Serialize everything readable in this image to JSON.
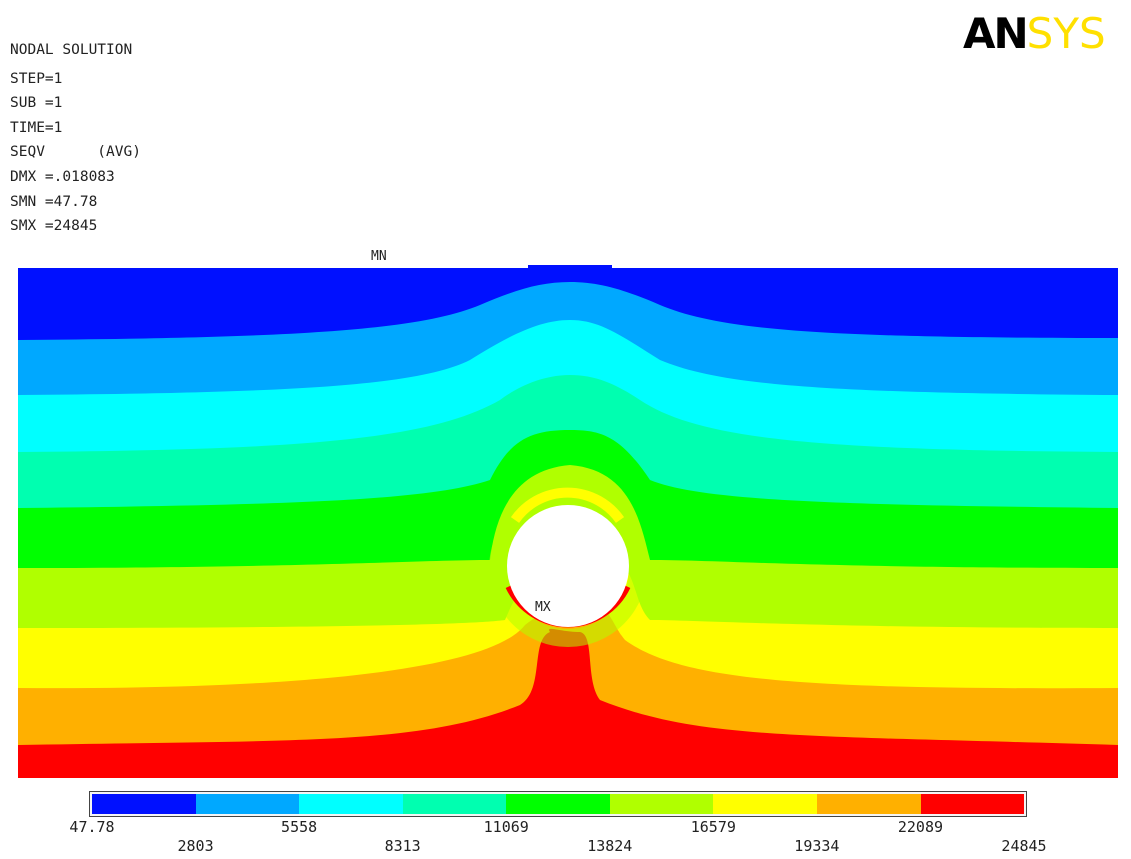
{
  "header": {
    "title": "NODAL SOLUTION",
    "step": "STEP=1",
    "sub": "SUB =1",
    "time": "TIME=1",
    "seqv": "SEQV      (AVG)",
    "dmx": "DMX =.018083",
    "smn": "SMN =47.78",
    "smx": "SMX =24845"
  },
  "logo": {
    "part1": "AN",
    "part2": "SYS"
  },
  "labels": {
    "min": "MN",
    "max": "MX"
  },
  "legend": {
    "colors": [
      "#0010ff",
      "#00a8ff",
      "#00ffff",
      "#00ffb0",
      "#00ff00",
      "#b0ff00",
      "#ffff00",
      "#ffb000",
      "#ff0000"
    ],
    "top_values": [
      "47.78",
      "5558",
      "11069",
      "16579",
      "22089"
    ],
    "bottom_values": [
      "2803",
      "8313",
      "13824",
      "19334",
      "24845"
    ]
  }
}
